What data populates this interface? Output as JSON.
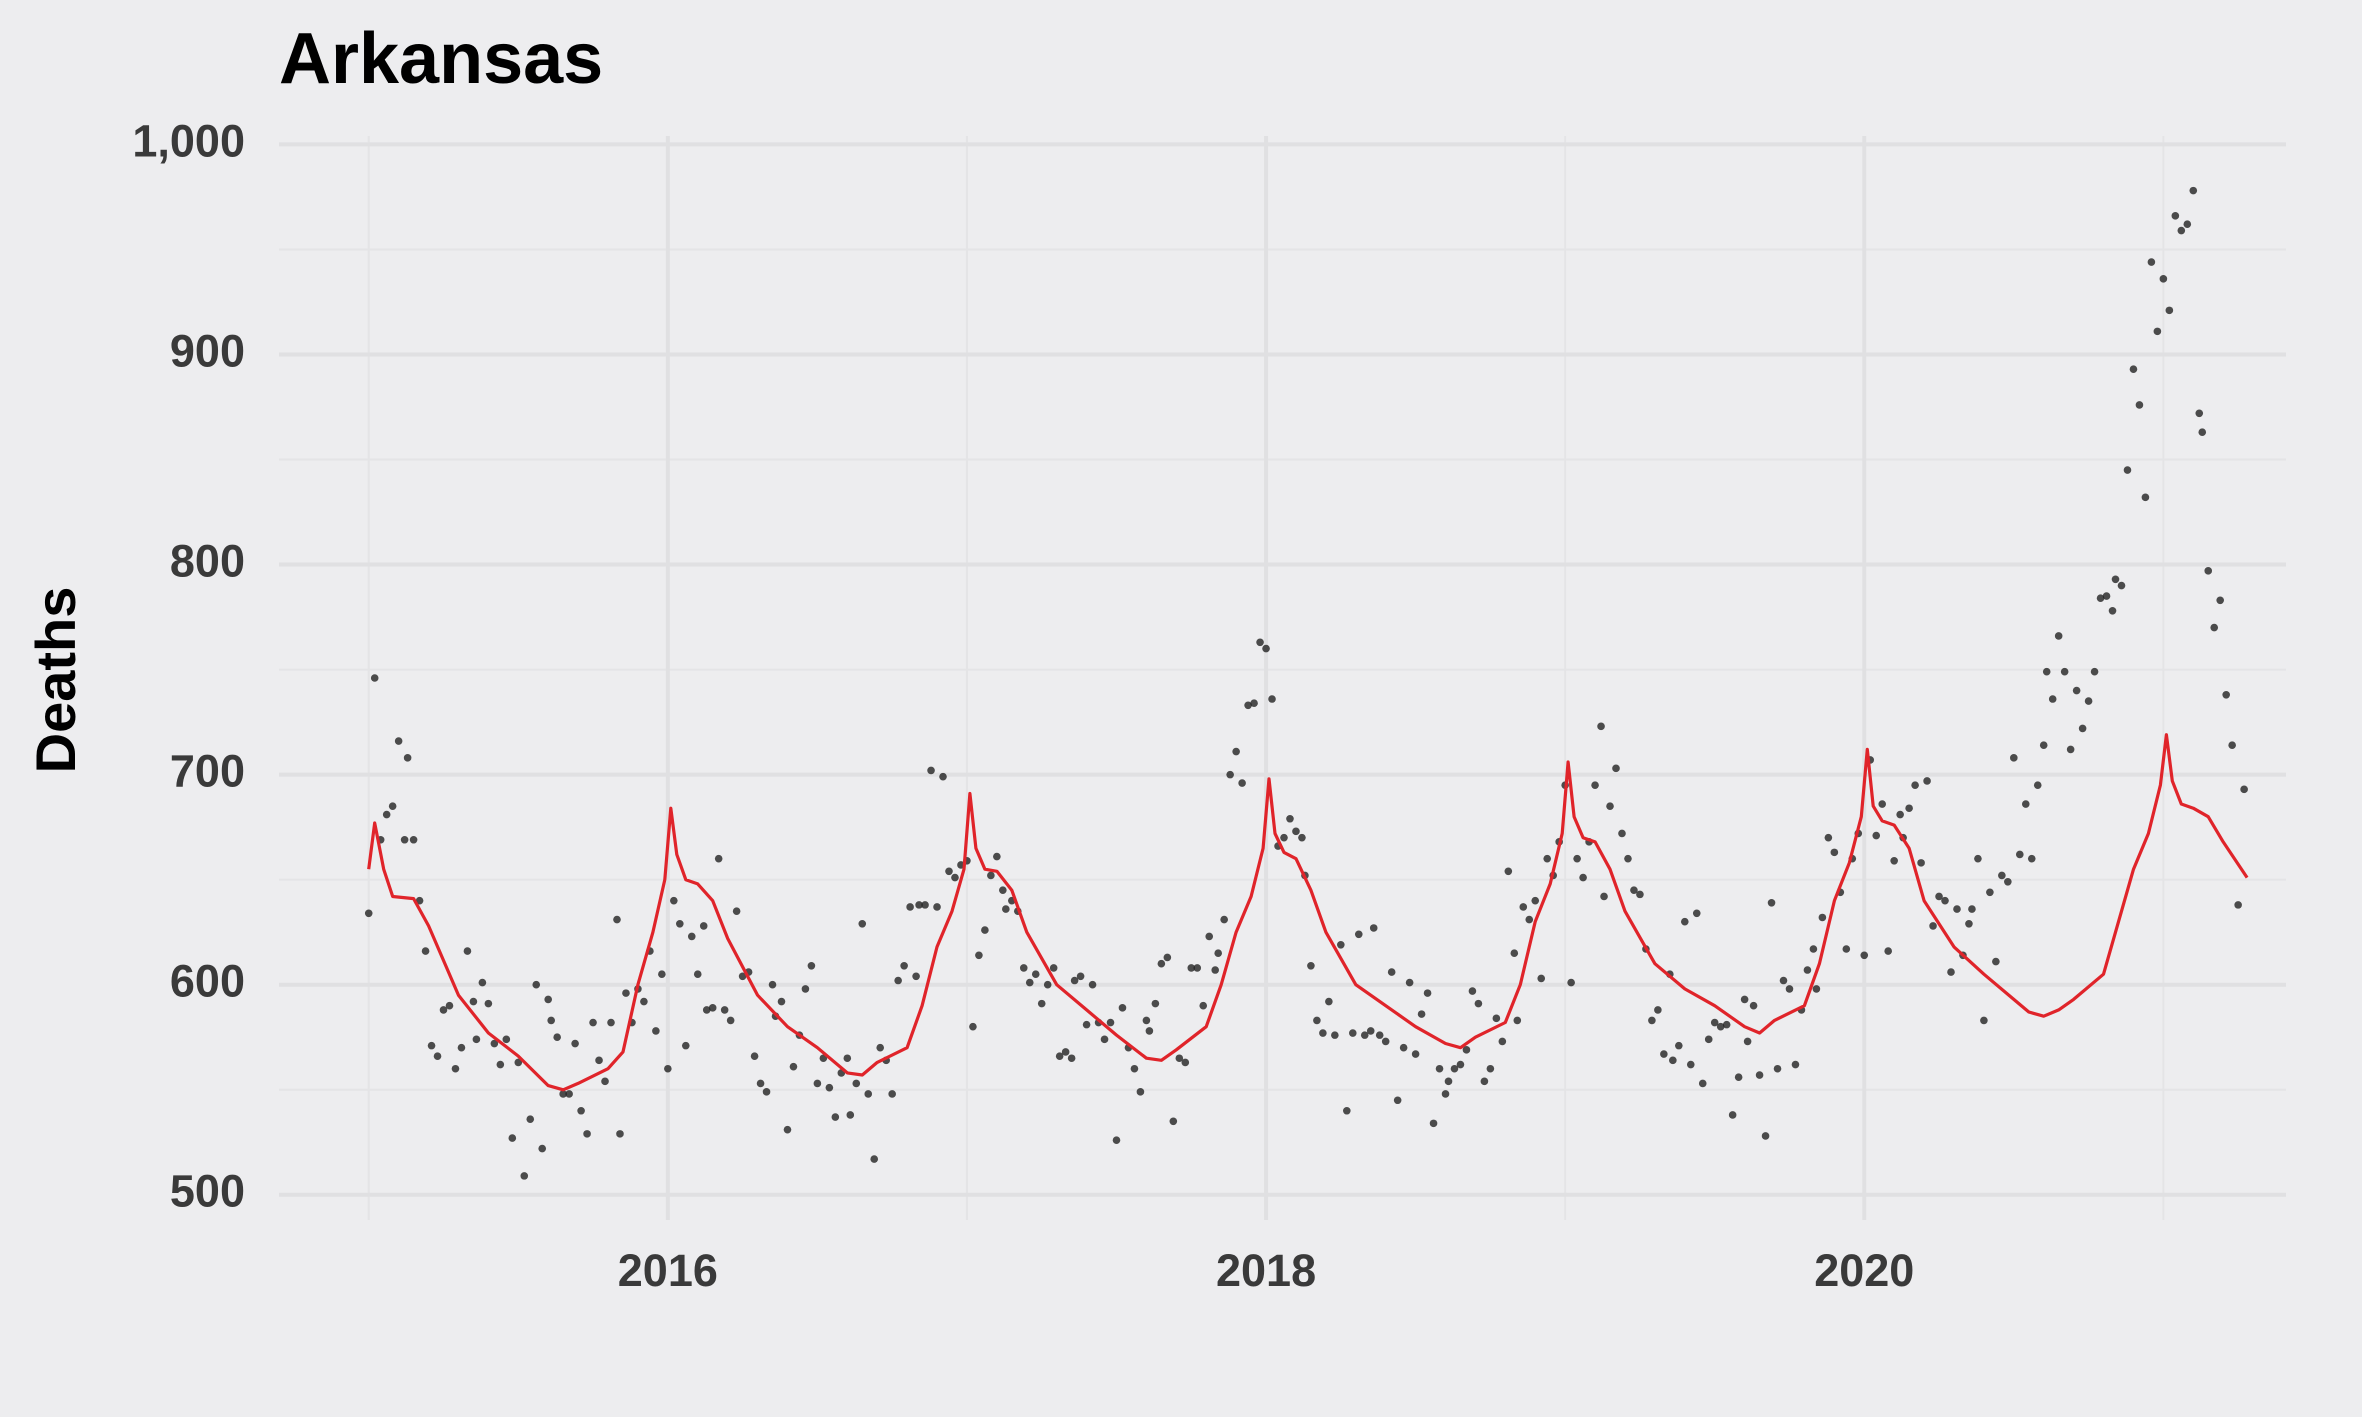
{
  "chart_data": {
    "type": "scatter",
    "title": "Arkansas",
    "ylabel": "Deaths",
    "xlim": [
      2014.7,
      2021.41
    ],
    "ylim": [
      488,
      1004
    ],
    "xticks": [
      2016,
      2018,
      2020
    ],
    "minor_xticks": [
      2015,
      2017,
      2019,
      2021
    ],
    "yticks": [
      500,
      600,
      700,
      800,
      900,
      {
        "value": 1000,
        "label": "1,000"
      }
    ],
    "minor_yticks": [
      550,
      650,
      750,
      850,
      950
    ],
    "grid": true,
    "series": [
      {
        "type": "scatter",
        "color": "#222222",
        "x": [
          2015.0,
          2015.02,
          2015.04,
          2015.06,
          2015.08,
          2015.1,
          2015.12,
          2015.13,
          2015.15,
          2015.17,
          2015.19,
          2015.21,
          2015.23,
          2015.25,
          2015.27,
          2015.29,
          2015.31,
          2015.33,
          2015.35,
          2015.36,
          2015.38,
          2015.4,
          2015.42,
          2015.44,
          2015.46,
          2015.48,
          2015.5,
          2015.52,
          2015.54,
          2015.56,
          2015.58,
          2015.6,
          2015.61,
          2015.63,
          2015.65,
          2015.67,
          2015.69,
          2015.71,
          2015.73,
          2015.75,
          2015.77,
          2015.79,
          2015.81,
          2015.83,
          2015.84,
          2015.86,
          2015.88,
          2015.9,
          2015.92,
          2015.94,
          2015.96,
          2015.98,
          2016.0,
          2016.02,
          2016.04,
          2016.06,
          2016.08,
          2016.1,
          2016.12,
          2016.13,
          2016.15,
          2016.17,
          2016.19,
          2016.21,
          2016.23,
          2016.25,
          2016.27,
          2016.29,
          2016.31,
          2016.33,
          2016.35,
          2016.36,
          2016.38,
          2016.4,
          2016.42,
          2016.44,
          2016.46,
          2016.48,
          2016.5,
          2016.52,
          2016.54,
          2016.56,
          2016.58,
          2016.6,
          2016.61,
          2016.63,
          2016.65,
          2016.67,
          2016.69,
          2016.71,
          2016.73,
          2016.75,
          2016.77,
          2016.79,
          2016.81,
          2016.83,
          2016.84,
          2016.86,
          2016.88,
          2016.9,
          2016.92,
          2016.94,
          2016.96,
          2016.98,
          2017.0,
          2017.02,
          2017.04,
          2017.06,
          2017.08,
          2017.1,
          2017.12,
          2017.13,
          2017.15,
          2017.17,
          2017.19,
          2017.21,
          2017.23,
          2017.25,
          2017.27,
          2017.29,
          2017.31,
          2017.33,
          2017.35,
          2017.36,
          2017.38,
          2017.4,
          2017.42,
          2017.44,
          2017.46,
          2017.48,
          2017.5,
          2017.52,
          2017.54,
          2017.56,
          2017.58,
          2017.6,
          2017.61,
          2017.63,
          2017.65,
          2017.67,
          2017.69,
          2017.71,
          2017.73,
          2017.75,
          2017.77,
          2017.79,
          2017.81,
          2017.83,
          2017.84,
          2017.86,
          2017.88,
          2017.9,
          2017.92,
          2017.94,
          2017.96,
          2017.98,
          2018.0,
          2018.02,
          2018.04,
          2018.06,
          2018.08,
          2018.1,
          2018.12,
          2018.13,
          2018.15,
          2018.17,
          2018.19,
          2018.21,
          2018.23,
          2018.25,
          2018.27,
          2018.29,
          2018.31,
          2018.33,
          2018.35,
          2018.36,
          2018.38,
          2018.4,
          2018.42,
          2018.44,
          2018.46,
          2018.48,
          2018.5,
          2018.52,
          2018.54,
          2018.56,
          2018.58,
          2018.6,
          2018.61,
          2018.63,
          2018.65,
          2018.67,
          2018.69,
          2018.71,
          2018.73,
          2018.75,
          2018.77,
          2018.79,
          2018.81,
          2018.83,
          2018.84,
          2018.86,
          2018.88,
          2018.9,
          2018.92,
          2018.94,
          2018.96,
          2018.98,
          2019.0,
          2019.02,
          2019.04,
          2019.06,
          2019.08,
          2019.1,
          2019.12,
          2019.13,
          2019.15,
          2019.17,
          2019.19,
          2019.21,
          2019.23,
          2019.25,
          2019.27,
          2019.29,
          2019.31,
          2019.33,
          2019.35,
          2019.36,
          2019.38,
          2019.4,
          2019.42,
          2019.44,
          2019.46,
          2019.48,
          2019.5,
          2019.52,
          2019.54,
          2019.56,
          2019.58,
          2019.6,
          2019.61,
          2019.63,
          2019.65,
          2019.67,
          2019.69,
          2019.71,
          2019.73,
          2019.75,
          2019.77,
          2019.79,
          2019.81,
          2019.83,
          2019.84,
          2019.86,
          2019.88,
          2019.9,
          2019.92,
          2019.94,
          2019.96,
          2019.98,
          2020.0,
          2020.02,
          2020.04,
          2020.06,
          2020.08,
          2020.1,
          2020.12,
          2020.13,
          2020.15,
          2020.17,
          2020.19,
          2020.21,
          2020.23,
          2020.25,
          2020.27,
          2020.29,
          2020.31,
          2020.33,
          2020.35,
          2020.36,
          2020.38,
          2020.4,
          2020.42,
          2020.44,
          2020.46,
          2020.48,
          2020.5,
          2020.52,
          2020.54,
          2020.56,
          2020.58,
          2020.6,
          2020.61,
          2020.63,
          2020.65,
          2020.67,
          2020.69,
          2020.71,
          2020.73,
          2020.75,
          2020.77,
          2020.79,
          2020.81,
          2020.83,
          2020.84,
          2020.86,
          2020.88,
          2020.9,
          2020.92,
          2020.94,
          2020.96,
          2020.98,
          2021.0,
          2021.02,
          2021.04,
          2021.06,
          2021.08,
          2021.1,
          2021.12,
          2021.13,
          2021.15,
          2021.17,
          2021.19,
          2021.21,
          2021.23,
          2021.25,
          2021.27
        ],
        "values": [
          634,
          746,
          669,
          681,
          685,
          716,
          669,
          708,
          669,
          640,
          616,
          571,
          566,
          588,
          590,
          560,
          570,
          616,
          592,
          574,
          601,
          591,
          572,
          562,
          574,
          527,
          563,
          509,
          536,
          600,
          522,
          593,
          583,
          575,
          548,
          548,
          572,
          540,
          529,
          582,
          564,
          554,
          582,
          631,
          529,
          596,
          582,
          598,
          592,
          616,
          578,
          605,
          560,
          640,
          629,
          571,
          623,
          605,
          628,
          588,
          589,
          660,
          588,
          583,
          635,
          604,
          606,
          566,
          553,
          549,
          600,
          585,
          592,
          531,
          561,
          576,
          598,
          609,
          553,
          565,
          551,
          537,
          558,
          565,
          538,
          553,
          629,
          548,
          517,
          570,
          564,
          548,
          602,
          609,
          637,
          604,
          638,
          638,
          702,
          637,
          699,
          654,
          651,
          657,
          659,
          580,
          614,
          626,
          652,
          661,
          645,
          636,
          640,
          635,
          608,
          601,
          605,
          591,
          600,
          608,
          566,
          568,
          565,
          602,
          604,
          581,
          600,
          582,
          574,
          582,
          526,
          589,
          570,
          560,
          549,
          583,
          578,
          591,
          610,
          613,
          535,
          565,
          563,
          608,
          608,
          590,
          623,
          607,
          615,
          631,
          700,
          711,
          696,
          733,
          734,
          763,
          760,
          736,
          666,
          670,
          679,
          673,
          670,
          652,
          609,
          583,
          577,
          592,
          576,
          619,
          540,
          577,
          624,
          576,
          578,
          627,
          576,
          573,
          606,
          545,
          570,
          601,
          567,
          586,
          596,
          534,
          560,
          548,
          554,
          560,
          562,
          569,
          597,
          591,
          554,
          560,
          584,
          573,
          654,
          615,
          583,
          637,
          631,
          640,
          603,
          660,
          652,
          668,
          695,
          601,
          660,
          651,
          668,
          695,
          723,
          642,
          685,
          703,
          672,
          660,
          645,
          643,
          617,
          583,
          588,
          567,
          605,
          564,
          571,
          630,
          562,
          634,
          553,
          574,
          582,
          580,
          581,
          538,
          556,
          593,
          573,
          590,
          557,
          528,
          639,
          560,
          602,
          598,
          562,
          588,
          607,
          617,
          598,
          632,
          670,
          663,
          644,
          617,
          660,
          672,
          614,
          707,
          671,
          686,
          616,
          659,
          681,
          670,
          684,
          695,
          658,
          697,
          628,
          642,
          640,
          606,
          636,
          614,
          629,
          636,
          660,
          583,
          644,
          611,
          652,
          649,
          708,
          662,
          686,
          660,
          695,
          714,
          749,
          736,
          766,
          749,
          712,
          740,
          722,
          735,
          749,
          784,
          785,
          778,
          793,
          790,
          845,
          893,
          876,
          832,
          944,
          911,
          936,
          921,
          966,
          959,
          962,
          978,
          872,
          863,
          797,
          770,
          783,
          738,
          714,
          638,
          693
        ]
      },
      {
        "type": "line",
        "color": "#e0242a",
        "x": [
          2015.0,
          2015.02,
          2015.05,
          2015.08,
          2015.15,
          2015.2,
          2015.3,
          2015.4,
          2015.5,
          2015.6,
          2015.65,
          2015.7,
          2015.8,
          2015.85,
          2015.9,
          2015.95,
          2015.99,
          2016.01,
          2016.03,
          2016.06,
          2016.1,
          2016.15,
          2016.2,
          2016.3,
          2016.4,
          2016.5,
          2016.6,
          2016.65,
          2016.7,
          2016.8,
          2016.85,
          2016.9,
          2016.95,
          2016.99,
          2017.01,
          2017.03,
          2017.06,
          2017.1,
          2017.15,
          2017.2,
          2017.3,
          2017.4,
          2017.5,
          2017.6,
          2017.65,
          2017.7,
          2017.8,
          2017.85,
          2017.9,
          2017.95,
          2017.99,
          2018.01,
          2018.03,
          2018.06,
          2018.1,
          2018.15,
          2018.2,
          2018.3,
          2018.4,
          2018.5,
          2018.6,
          2018.65,
          2018.7,
          2018.8,
          2018.85,
          2018.9,
          2018.95,
          2018.99,
          2019.01,
          2019.03,
          2019.06,
          2019.1,
          2019.15,
          2019.2,
          2019.3,
          2019.4,
          2019.5,
          2019.6,
          2019.65,
          2019.7,
          2019.8,
          2019.85,
          2019.9,
          2019.95,
          2019.99,
          2020.01,
          2020.03,
          2020.06,
          2020.1,
          2020.15,
          2020.2,
          2020.3,
          2020.4,
          2020.5,
          2020.55,
          2020.6,
          2020.65,
          2020.7,
          2020.8,
          2020.85,
          2020.9,
          2020.95,
          2020.99,
          2021.01,
          2021.03,
          2021.06,
          2021.1,
          2021.15,
          2021.2,
          2021.28
        ],
        "values": [
          655,
          677,
          655,
          642,
          641,
          628,
          595,
          577,
          566,
          552,
          550,
          553,
          560,
          568,
          600,
          625,
          650,
          684,
          662,
          650,
          648,
          640,
          622,
          595,
          580,
          570,
          558,
          557,
          563,
          570,
          590,
          618,
          635,
          655,
          691,
          665,
          655,
          654,
          645,
          625,
          600,
          588,
          576,
          565,
          564,
          569,
          580,
          600,
          625,
          642,
          665,
          698,
          672,
          663,
          660,
          645,
          625,
          600,
          590,
          580,
          572,
          570,
          575,
          582,
          600,
          630,
          648,
          672,
          706,
          680,
          670,
          668,
          655,
          635,
          610,
          598,
          590,
          580,
          577,
          583,
          590,
          610,
          640,
          658,
          680,
          712,
          685,
          678,
          676,
          665,
          640,
          618,
          605,
          593,
          587,
          585,
          588,
          593,
          605,
          630,
          655,
          672,
          695,
          719,
          697,
          686,
          684,
          680,
          668,
          651
        ]
      }
    ]
  }
}
